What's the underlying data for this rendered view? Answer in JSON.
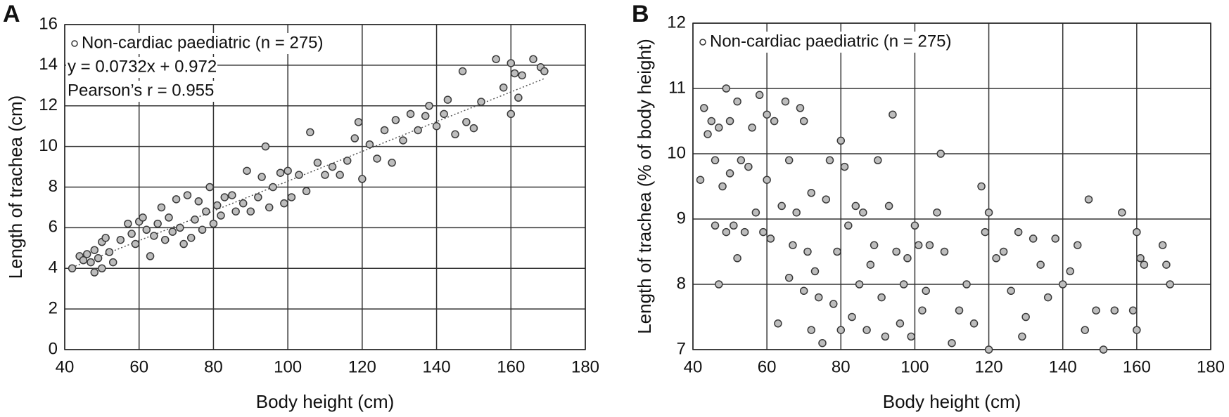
{
  "chart_data": [
    {
      "type": "scatter",
      "title": "A",
      "x_label": "Body height (cm)",
      "y_label": "Length of trachea (cm)",
      "xlim": [
        40,
        180
      ],
      "xticks": [
        40,
        60,
        80,
        100,
        120,
        140,
        160,
        180
      ],
      "ylim": [
        0,
        16
      ],
      "yticks": [
        0,
        2,
        4,
        6,
        8,
        10,
        12,
        14,
        16
      ],
      "grid": true,
      "annotations": [
        "y = 0.0732x + 0.972",
        "Pearson’s r = 0.955"
      ],
      "trendline": {
        "slope": 0.0732,
        "intercept": 0.972
      },
      "series": [
        {
          "name": "Non-cardiac paediatric (n = 275)",
          "color": "#bdbdbd",
          "x": [
            42,
            44,
            45,
            46,
            47,
            48,
            48,
            49,
            50,
            50,
            51,
            52,
            53,
            55,
            57,
            58,
            59,
            60,
            61,
            62,
            63,
            64,
            65,
            66,
            67,
            68,
            69,
            70,
            71,
            72,
            73,
            74,
            75,
            76,
            77,
            78,
            79,
            80,
            81,
            82,
            83,
            85,
            86,
            88,
            89,
            90,
            92,
            93,
            94,
            95,
            96,
            98,
            99,
            100,
            101,
            103,
            105,
            106,
            108,
            110,
            112,
            114,
            116,
            118,
            119,
            120,
            122,
            124,
            126,
            128,
            129,
            131,
            133,
            135,
            137,
            138,
            140,
            142,
            143,
            145,
            147,
            148,
            150,
            152,
            156,
            158,
            160,
            160,
            161,
            162,
            163,
            166,
            168,
            169
          ],
          "values": [
            4.0,
            4.6,
            4.4,
            4.7,
            4.3,
            3.8,
            4.9,
            4.5,
            5.3,
            4.0,
            5.5,
            4.8,
            4.3,
            5.4,
            6.2,
            5.7,
            5.2,
            6.3,
            6.5,
            5.9,
            4.6,
            5.6,
            6.2,
            7.0,
            5.4,
            6.5,
            5.8,
            7.4,
            6.0,
            5.2,
            7.6,
            5.5,
            6.4,
            7.3,
            5.9,
            6.8,
            8.0,
            6.2,
            7.1,
            6.6,
            7.5,
            7.6,
            6.8,
            7.2,
            8.8,
            6.8,
            7.5,
            8.5,
            10.0,
            7.0,
            8.0,
            8.7,
            7.2,
            8.8,
            7.5,
            8.6,
            7.8,
            10.7,
            9.2,
            8.6,
            9.0,
            8.6,
            9.3,
            10.4,
            11.2,
            8.4,
            10.1,
            9.4,
            10.8,
            9.2,
            11.3,
            10.3,
            11.6,
            10.8,
            11.5,
            12.0,
            11.0,
            11.6,
            12.3,
            10.6,
            13.7,
            11.2,
            10.9,
            12.2,
            14.3,
            12.9,
            14.1,
            11.6,
            13.6,
            12.4,
            13.5,
            14.3,
            13.9,
            13.7
          ]
        }
      ]
    },
    {
      "type": "scatter",
      "title": "B",
      "x_label": "Body height (cm)",
      "y_label": "Length of trachea (% of body height)",
      "xlim": [
        40,
        180
      ],
      "xticks": [
        40,
        60,
        80,
        100,
        120,
        140,
        160,
        180
      ],
      "ylim": [
        7,
        12
      ],
      "yticks": [
        7,
        8,
        9,
        10,
        11,
        12
      ],
      "grid": true,
      "series": [
        {
          "name": "Non-cardiac paediatric (n = 275)",
          "color": "#bdbdbd",
          "x": [
            42,
            43,
            44,
            45,
            46,
            46,
            47,
            47,
            48,
            49,
            49,
            50,
            50,
            51,
            52,
            52,
            53,
            54,
            55,
            56,
            57,
            58,
            59,
            60,
            60,
            61,
            62,
            63,
            64,
            65,
            66,
            66,
            67,
            68,
            69,
            70,
            70,
            71,
            72,
            72,
            73,
            74,
            75,
            76,
            77,
            78,
            79,
            80,
            80,
            81,
            82,
            83,
            84,
            85,
            86,
            87,
            88,
            89,
            90,
            91,
            92,
            93,
            94,
            95,
            96,
            97,
            98,
            99,
            100,
            101,
            102,
            103,
            104,
            106,
            107,
            108,
            110,
            112,
            114,
            116,
            118,
            119,
            120,
            120,
            122,
            124,
            126,
            128,
            129,
            130,
            132,
            134,
            136,
            138,
            140,
            142,
            144,
            146,
            147,
            149,
            151,
            154,
            156,
            159,
            160,
            160,
            161,
            162,
            167,
            168,
            169
          ],
          "values": [
            9.6,
            10.7,
            10.3,
            10.5,
            9.9,
            8.9,
            10.4,
            8.0,
            9.5,
            11.0,
            8.8,
            10.5,
            9.7,
            8.9,
            8.4,
            10.8,
            9.9,
            8.8,
            9.8,
            10.4,
            9.1,
            10.9,
            8.8,
            10.6,
            9.6,
            8.7,
            10.5,
            7.4,
            9.2,
            10.8,
            8.1,
            9.9,
            8.6,
            9.1,
            10.7,
            10.5,
            7.9,
            8.5,
            7.3,
            9.4,
            8.2,
            7.8,
            7.1,
            9.3,
            9.9,
            7.7,
            8.5,
            10.2,
            7.3,
            9.8,
            8.9,
            7.5,
            9.2,
            8.0,
            9.1,
            7.3,
            8.3,
            8.6,
            9.9,
            7.8,
            7.2,
            9.2,
            10.6,
            8.5,
            7.4,
            8.0,
            8.4,
            7.2,
            8.9,
            8.6,
            7.6,
            7.9,
            8.6,
            9.1,
            10.0,
            8.5,
            7.1,
            7.6,
            8.0,
            7.4,
            9.5,
            8.8,
            9.1,
            7.0,
            8.4,
            8.5,
            7.9,
            8.8,
            7.2,
            7.5,
            8.7,
            8.3,
            7.8,
            8.7,
            8.0,
            8.2,
            8.6,
            7.3,
            9.3,
            7.6,
            7.0,
            7.6,
            9.1,
            7.6,
            8.8,
            7.3,
            8.4,
            8.3,
            8.6,
            8.3,
            8.0
          ]
        }
      ]
    }
  ]
}
